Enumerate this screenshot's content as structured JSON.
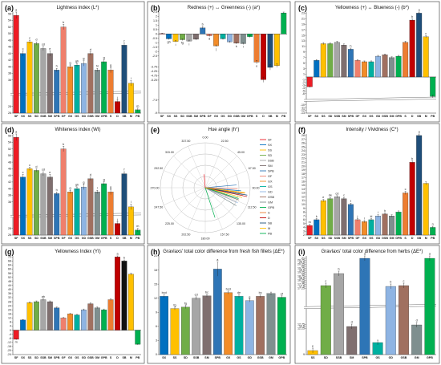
{
  "figure": {
    "colors": {
      "SF": "#ee1c25",
      "SX": "#0070c0",
      "SS": "#ffc000",
      "SD": "#70ad47",
      "SSB": "#a6a6a6",
      "SM": "#7f6f6f",
      "SPB": "#2e75b6",
      "GF": "#ef7f6c",
      "GX": "#f28c28",
      "GS": "#00b0a0",
      "GD": "#8eb4e3",
      "GSB": "#a07060",
      "GM": "#7f8f8f",
      "GPB": "#00b050",
      "S": "#ed7d31",
      "D": "#c00000",
      "SB": "#1f4e79",
      "M": "#ffc000",
      "PB": "#00b050",
      "BLK": "#111111"
    }
  },
  "chart_data": [
    {
      "id": "a",
      "type": "bar",
      "panel_label": "(a)",
      "title": "Lightness index (L*)",
      "categories": [
        "SF",
        "SX",
        "SS",
        "SD",
        "SSB",
        "SM",
        "SPB",
        "GF",
        "GX",
        "GS",
        "GD",
        "GSB",
        "GM",
        "GPB",
        "S",
        "D",
        "SB",
        "M",
        "PB"
      ],
      "values": [
        55.5,
        44,
        47.5,
        47,
        45.5,
        44,
        39,
        52,
        40,
        40.5,
        41,
        44,
        39,
        41.5,
        39,
        29.5,
        46.5,
        35,
        27
      ],
      "errors": [
        1,
        0.8,
        0.5,
        0.5,
        0.6,
        0.8,
        0.5,
        0.8,
        0.5,
        0.5,
        0.8,
        0.5,
        0.5,
        0.6,
        0.8,
        0.5,
        0.6,
        0.8,
        0.5
      ],
      "letters": [
        "a",
        "c",
        "c",
        "d",
        "cd",
        "e",
        "h",
        "b",
        "g",
        "gh",
        "g",
        "d",
        "hi",
        "g",
        "g",
        "j",
        "f",
        "l",
        "m"
      ],
      "yticks": [
        26,
        28,
        36,
        38,
        40,
        42,
        44,
        46,
        48,
        50,
        52,
        54,
        56
      ],
      "ybreak": [
        28,
        36
      ]
    },
    {
      "id": "b",
      "type": "bar",
      "panel_label": "(b)",
      "title": "Redness (+) ↔ Greenness (-) (a*)",
      "categories": [
        "SF",
        "SX",
        "SS",
        "SD",
        "SSB",
        "SM",
        "SPB",
        "GF",
        "GX",
        "GS",
        "GD",
        "GSB",
        "GM",
        "GPB",
        "S",
        "D",
        "SB",
        "M",
        "PB"
      ],
      "values": [
        0.05,
        -0.55,
        -0.85,
        -0.65,
        -0.8,
        -0.6,
        0.7,
        -0.2,
        -1.35,
        -0.55,
        -0.9,
        -1.05,
        -1.1,
        -0.3,
        -3.2,
        -5.2,
        -3.8,
        -3.6,
        2.4
      ],
      "errors": [
        0.05,
        0.1,
        0.1,
        0.1,
        0.1,
        0.1,
        0.15,
        0.1,
        0.1,
        0.1,
        0.1,
        0.1,
        0.1,
        0.1,
        0.2,
        0.3,
        0.3,
        0.2,
        0.1
      ],
      "letters": [
        "",
        "gh",
        "i",
        "fg",
        "i",
        "",
        "b",
        "d",
        "j",
        "",
        "",
        "k",
        "l",
        "",
        "o",
        "",
        "",
        "",
        ""
      ],
      "yticks": [
        -9,
        -7.5,
        -5.25,
        -4.75,
        -4.25,
        -3.75,
        -2.5,
        -2,
        -1.5,
        -1,
        -0.5,
        0,
        0.5,
        1,
        1.5,
        2,
        2.5
      ],
      "ybreak": [
        -2.5,
        -2.5
      ]
    },
    {
      "id": "c",
      "type": "bar",
      "panel_label": "(c)",
      "title": "Yellowness (+) ↔ Blueness (-) (b*)",
      "categories": [
        "SF",
        "SX",
        "SS",
        "SD",
        "SSB",
        "SM",
        "SPB",
        "GF",
        "GX",
        "GS",
        "GD",
        "GSB",
        "GM",
        "GPB",
        "S",
        "D",
        "SB",
        "M",
        "PB"
      ],
      "values": [
        -3.5,
        6,
        12,
        12,
        12.5,
        11.5,
        10,
        6,
        5.5,
        5.5,
        7.5,
        8,
        7,
        7.5,
        12.5,
        20.5,
        23,
        14.5,
        -7
      ],
      "errors": [
        0.3,
        0.3,
        0.4,
        0.3,
        0.4,
        0.4,
        0.4,
        0.3,
        0.3,
        0.3,
        0.3,
        0.3,
        0.3,
        0.3,
        0.4,
        0.4,
        0.4,
        0.4,
        0.5
      ],
      "letters": [
        "",
        "",
        "",
        "",
        "",
        "",
        "h",
        "",
        "",
        "",
        "",
        "",
        "",
        "",
        "",
        "b",
        "a",
        "c",
        ""
      ],
      "yticks": [
        -13,
        -12,
        -11,
        -10,
        -6,
        -5,
        -4,
        -3,
        -2,
        -1,
        1,
        3,
        5,
        7,
        9,
        11,
        13,
        15,
        17,
        19,
        21,
        23
      ],
      "ybreak": [
        -10,
        -6
      ]
    },
    {
      "id": "d",
      "type": "bar",
      "panel_label": "(d)",
      "title": "Whiteness index (WI)",
      "categories": [
        "SF",
        "SX",
        "SS",
        "SD",
        "SSB",
        "SM",
        "SPB",
        "GF",
        "GX",
        "GS",
        "GD",
        "GSB",
        "GM",
        "GPB",
        "S",
        "D",
        "SB",
        "M",
        "PB"
      ],
      "values": [
        55.5,
        43.5,
        46,
        45.5,
        44.5,
        43.5,
        38.5,
        52,
        39,
        40,
        40.5,
        43,
        39,
        41.5,
        39,
        29.5,
        44.5,
        34.5,
        27.5
      ],
      "errors": [
        1,
        0.8,
        0.5,
        0.5,
        0.6,
        0.8,
        0.5,
        0.8,
        0.5,
        0.5,
        0.8,
        0.5,
        0.5,
        0.6,
        0.8,
        0.5,
        0.6,
        0.8,
        0.5
      ],
      "letters": [
        "a",
        "c",
        "c",
        "d",
        "cd",
        "e",
        "h",
        "b",
        "g",
        "gh",
        "g",
        "d",
        "i",
        "g",
        "g",
        "j",
        "f",
        "l",
        "m"
      ],
      "yticks": [
        26,
        28,
        36,
        38,
        40,
        42,
        44,
        46,
        48,
        50,
        52,
        54,
        56
      ],
      "ybreak": [
        28,
        36
      ]
    },
    {
      "id": "e",
      "type": "scatter",
      "panel_label": "(e)",
      "title": "Hue angle (h°)",
      "angle_ticks": [
        0,
        22.5,
        45,
        67.5,
        90,
        112.5,
        135,
        157.5,
        180,
        202.5,
        225,
        247.5,
        270,
        292.5,
        315,
        337.5
      ],
      "legend": [
        "SF",
        "SX",
        "SS",
        "SD",
        "SSB",
        "SM",
        "SPB",
        "GF",
        "GX",
        "GS",
        "GD",
        "GSB",
        "GM",
        "GPB",
        "S",
        "D",
        "SB",
        "M",
        "PB"
      ],
      "h_values": [
        355,
        95,
        105,
        100,
        101,
        98,
        85,
        92,
        115,
        110,
        115,
        110,
        120,
        108,
        98,
        102,
        100,
        97,
        162
      ],
      "r_values": [
        0.3,
        0.8,
        0.85,
        0.8,
        0.85,
        0.82,
        0.7,
        0.72,
        0.75,
        0.78,
        0.8,
        0.8,
        0.8,
        0.78,
        0.88,
        0.95,
        0.95,
        0.9,
        0.7
      ]
    },
    {
      "id": "f",
      "type": "bar",
      "panel_label": "(f)",
      "title": "Intensity / Vividness (C*)",
      "categories": [
        "SF",
        "SX",
        "SS",
        "SD",
        "SSB",
        "SM",
        "SPB",
        "GF",
        "GX",
        "GS",
        "GD",
        "GSB",
        "GM",
        "GPB",
        "S",
        "D",
        "SB",
        "M",
        "PB"
      ],
      "values": [
        4.5,
        6,
        11,
        11.5,
        12,
        11.5,
        10,
        6,
        5.5,
        6,
        7,
        7.5,
        7,
        8,
        13,
        21,
        28,
        15.5,
        4
      ],
      "errors": [
        0.3,
        0.3,
        0.3,
        0.3,
        0.3,
        0.3,
        0.3,
        0.3,
        0.3,
        0.3,
        0.3,
        0.3,
        0.3,
        0.3,
        0.4,
        0.4,
        0.4,
        0.4,
        0.3
      ],
      "letters": [
        "m",
        "k",
        "e",
        "de",
        "cd",
        "c",
        "f",
        "j",
        "l",
        "kl",
        "i",
        "h",
        "",
        "",
        "c",
        "b",
        "a",
        "",
        "n"
      ],
      "yticks": [
        2,
        3,
        4,
        5,
        6,
        7,
        8,
        9,
        10,
        11,
        12,
        13,
        14,
        15,
        16,
        17,
        18,
        19,
        20,
        21,
        22,
        23,
        24,
        25,
        26,
        27,
        28
      ],
      "ybreak": [
        13,
        13
      ]
    },
    {
      "id": "g",
      "type": "bar",
      "panel_label": "(g)",
      "title": "Yellowness Index (YI)",
      "categories": [
        "SF",
        "SX",
        "SS",
        "SD",
        "SSB",
        "SM",
        "SPB",
        "GF",
        "GX",
        "GS",
        "GD",
        "GSB",
        "GM",
        "GPB",
        "S",
        "D",
        "SB",
        "M",
        "PB"
      ],
      "values": [
        -9,
        10,
        27,
        28,
        30,
        28,
        22,
        12,
        16,
        15,
        20,
        26,
        22,
        20,
        30,
        72,
        68,
        55,
        -14
      ],
      "errors": [
        0.5,
        0.5,
        0.8,
        0.8,
        0.8,
        0.8,
        0.8,
        0.5,
        0.5,
        0.5,
        0.8,
        0.8,
        0.8,
        0.8,
        0.8,
        1,
        1,
        1,
        0.5
      ],
      "letters": [
        "m",
        "",
        "",
        "",
        "ab",
        "",
        "",
        "",
        "",
        "",
        "",
        "",
        "",
        "",
        "",
        "a",
        "b",
        "",
        ""
      ],
      "yticks": [
        -24,
        -20,
        -16,
        -12,
        -8,
        -4,
        0,
        4,
        8,
        12,
        16,
        20,
        24,
        28,
        32,
        36,
        40,
        44,
        48,
        52,
        56,
        60,
        64,
        68,
        72
      ],
      "ybreak": [
        -4,
        -4
      ]
    },
    {
      "id": "h",
      "type": "bar",
      "panel_label": "(h)",
      "title": "Gravlaxs' total color difference from fresh fish fillets (ΔE*)",
      "categories": [
        "SX",
        "SS",
        "SD",
        "SSB",
        "SM",
        "SPB",
        "GX",
        "GS",
        "GD",
        "GSB",
        "GM",
        "GPB"
      ],
      "values": [
        12.4,
        9.8,
        10.1,
        12.0,
        12.5,
        18.2,
        13.2,
        12.4,
        11.5,
        12.4,
        13.0,
        12.2
      ],
      "errors": [
        0.3,
        0.3,
        0.3,
        0.3,
        0.3,
        1.5,
        0.3,
        0.3,
        0.3,
        0.3,
        0.3,
        0.3
      ],
      "letters": [
        "bcd",
        "fg",
        "fg",
        "cd",
        "bc",
        "a",
        "bcd",
        "de",
        "g",
        "bc",
        "",
        "ef"
      ],
      "yticks": [
        0,
        3,
        6,
        9,
        12,
        15,
        18,
        21
      ],
      "ybreak": [
        0,
        0
      ]
    },
    {
      "id": "i",
      "type": "bar",
      "panel_label": "(i)",
      "title": "Gravlaxs' total color difference from herbs (ΔE*)",
      "categories": [
        "SS",
        "SD",
        "SSB",
        "SM",
        "SPB",
        "GS",
        "GD",
        "GSB",
        "GM",
        "GPB"
      ],
      "values": [
        9.5,
        17.6,
        19.1,
        12.5,
        21.0,
        10.5,
        17.5,
        17.6,
        12.7,
        21.0
      ],
      "errors": [
        0.3,
        0.3,
        0.3,
        0.3,
        0.3,
        0.3,
        0.3,
        0.3,
        0.3,
        0.3
      ],
      "letters": [
        "e",
        "c",
        "b",
        "d",
        "a",
        "",
        "b",
        "c",
        "d",
        "a"
      ],
      "yticks": [
        9.0,
        12.25,
        12.5,
        12.75,
        17.25,
        17.5,
        17.75,
        18.0,
        18.25,
        18.5,
        18.75,
        19.0,
        19.25,
        19.5,
        19.75,
        20.0,
        20.25,
        20.5,
        20.75,
        21.0
      ],
      "ybreak": [
        12.75,
        17.25
      ]
    }
  ]
}
